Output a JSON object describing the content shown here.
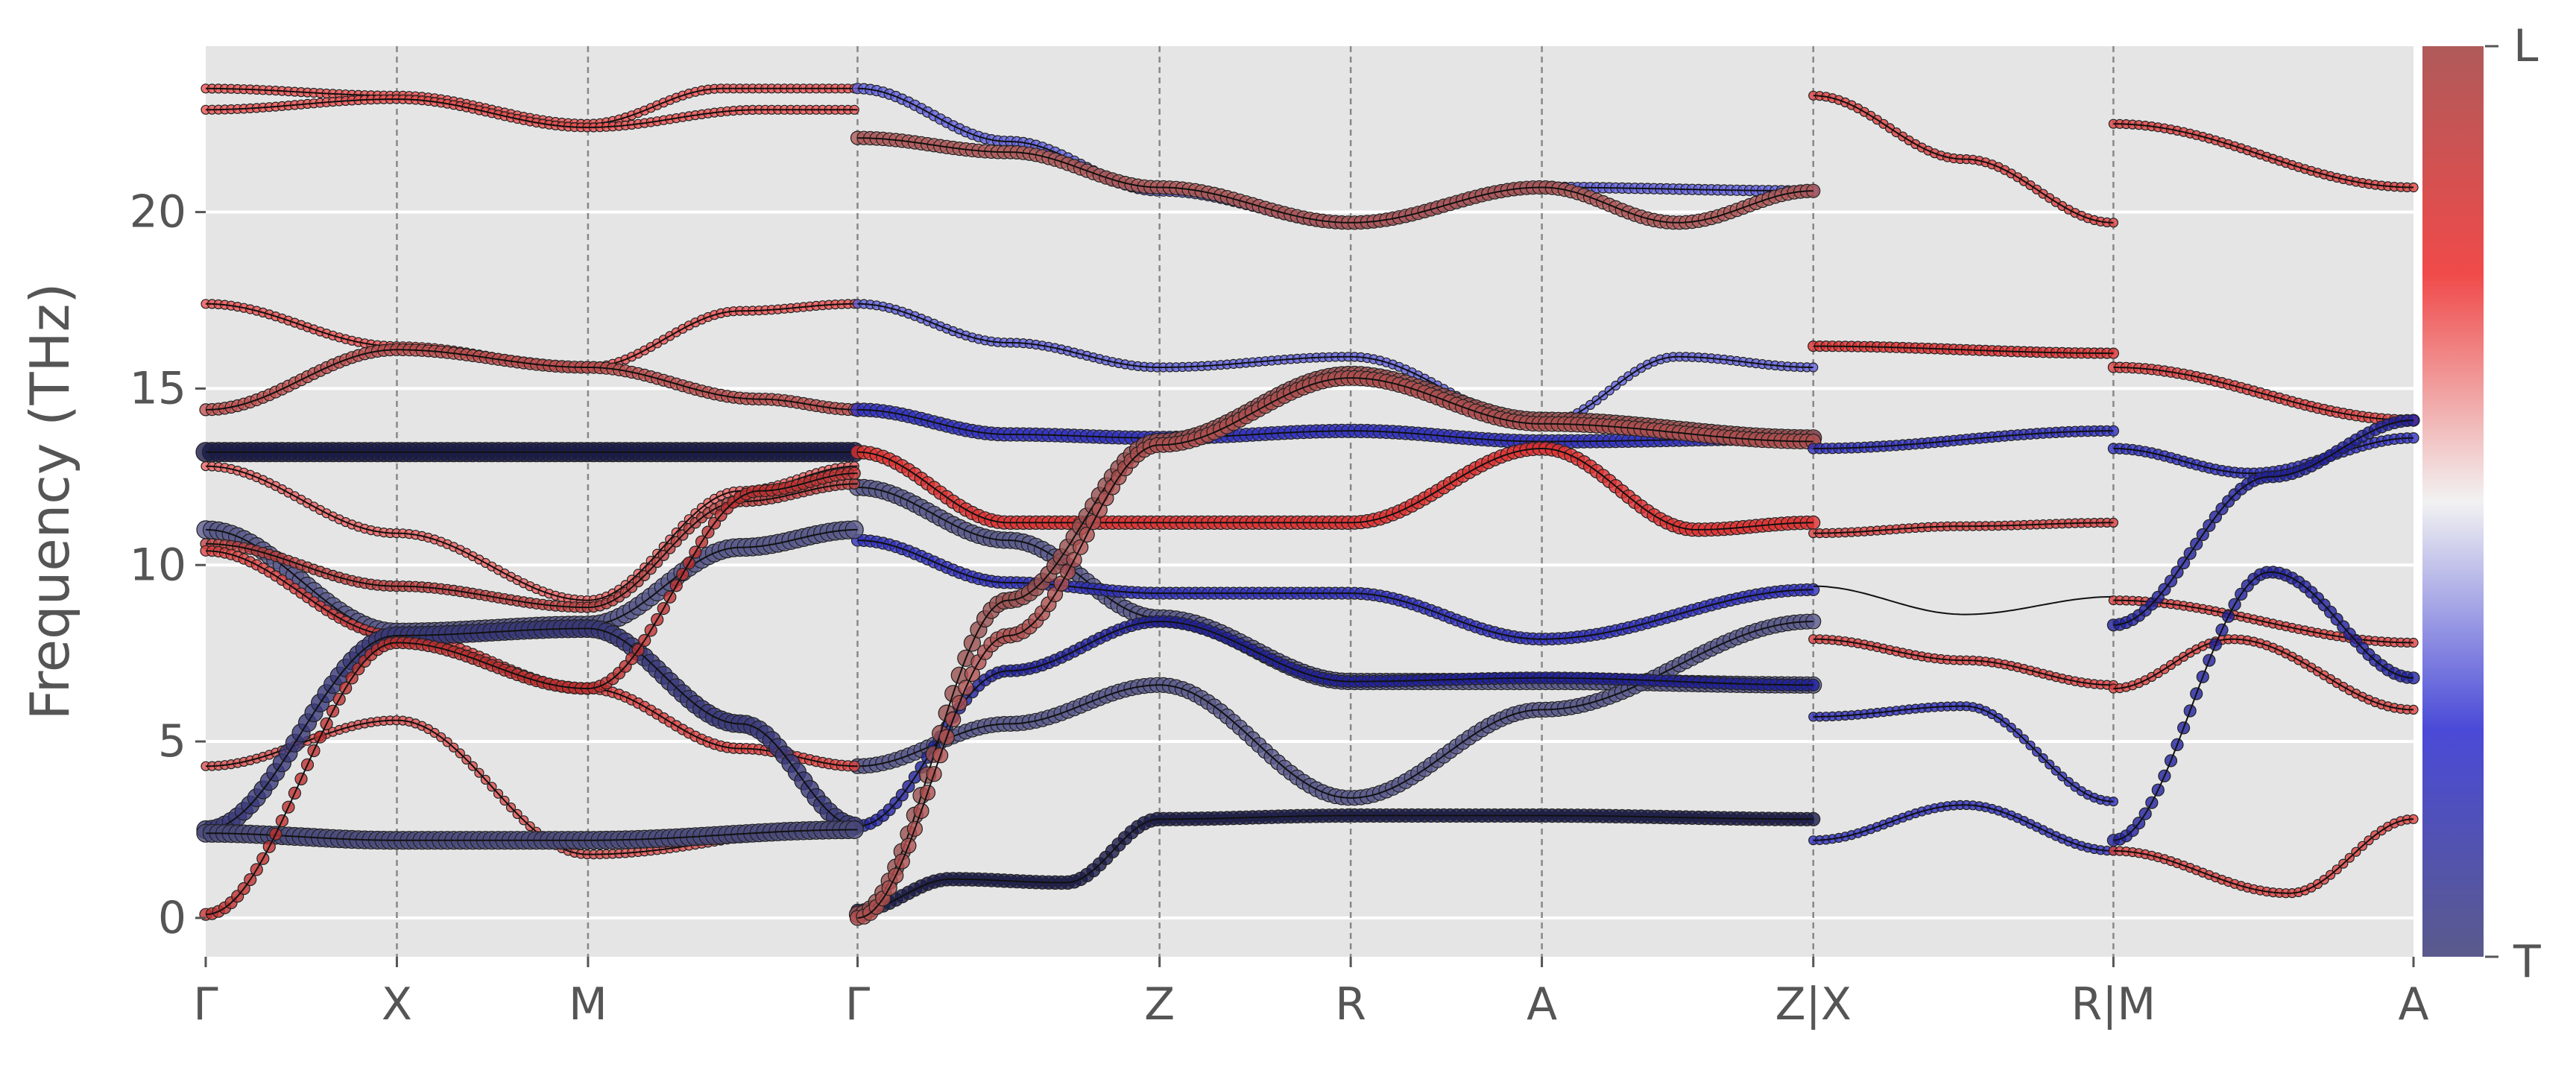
{
  "chart_data": {
    "type": "line",
    "ylabel": "Frequency (THz)",
    "ylim": [
      -1.1,
      24.7
    ],
    "yticks": [
      0,
      5,
      10,
      15,
      20
    ],
    "grid": true,
    "background": "#e5e5e5",
    "xticks": [
      {
        "label": "Γ",
        "x": 0
      },
      {
        "label": "X",
        "x": 1
      },
      {
        "label": "M",
        "x": 2
      },
      {
        "label": "Γ",
        "x": 3.41
      },
      {
        "label": "Z",
        "x": 4.99
      },
      {
        "label": "R",
        "x": 5.99
      },
      {
        "label": "A",
        "x": 6.99
      },
      {
        "label": "Z|X",
        "x": 8.41
      },
      {
        "label": "R|M",
        "x": 9.98
      },
      {
        "label": "A",
        "x": 11.55
      }
    ],
    "xlim": [
      0,
      11.55
    ],
    "segments": [
      [
        0,
        8.41
      ],
      [
        8.41,
        9.98
      ],
      [
        9.98,
        11.55
      ]
    ],
    "colorbar": {
      "top_label": "L",
      "bottom_label": "T",
      "colors": [
        "#5a5a8c",
        "#4a4ad8",
        "#f2f2f2",
        "#f04a4a",
        "#b05a5a"
      ]
    },
    "series": [
      {
        "values": [
          [
            0,
            23.5
          ],
          [
            1,
            23.3
          ],
          [
            2,
            22.5
          ],
          [
            2.7,
            23.5
          ],
          [
            3.41,
            23.5
          ]
        ],
        "color": "#ef5050",
        "size": 6
      },
      {
        "values": [
          [
            0,
            22.9
          ],
          [
            1,
            23.2
          ],
          [
            2,
            22.4
          ],
          [
            2.9,
            22.9
          ],
          [
            3.41,
            22.9
          ]
        ],
        "color": "#ef5050",
        "size": 6
      },
      {
        "values": [
          [
            3.41,
            23.5
          ],
          [
            4.2,
            22.0
          ],
          [
            4.99,
            20.6
          ],
          [
            5.99,
            19.7
          ],
          [
            6.99,
            20.7
          ],
          [
            8.41,
            20.6
          ]
        ],
        "color": "#6060e0",
        "size": 7
      },
      {
        "values": [
          [
            3.41,
            22.1
          ],
          [
            4.2,
            21.7
          ],
          [
            4.99,
            20.7
          ],
          [
            5.99,
            19.7
          ],
          [
            6.99,
            20.7
          ],
          [
            7.7,
            19.7
          ],
          [
            8.41,
            20.6
          ]
        ],
        "color": "#b05a5a",
        "size": 9
      },
      {
        "values": [
          [
            0,
            17.4
          ],
          [
            1,
            16.2
          ],
          [
            2,
            15.6
          ],
          [
            2.8,
            17.2
          ],
          [
            3.41,
            17.4
          ]
        ],
        "color": "#ef5050",
        "size": 6
      },
      {
        "values": [
          [
            0,
            14.4
          ],
          [
            1,
            16.1
          ],
          [
            2,
            15.6
          ],
          [
            2.9,
            14.7
          ],
          [
            3.41,
            14.4
          ]
        ],
        "color": "#c05050",
        "size": 8
      },
      {
        "values": [
          [
            0,
            13.2
          ],
          [
            1,
            13.2
          ],
          [
            2,
            13.2
          ],
          [
            3.41,
            13.2
          ]
        ],
        "color": "#1a1a4a",
        "size": 13
      },
      {
        "values": [
          [
            3.41,
            17.4
          ],
          [
            4.2,
            16.3
          ],
          [
            4.99,
            15.6
          ],
          [
            5.99,
            15.9
          ],
          [
            6.99,
            14.0
          ],
          [
            7.7,
            15.9
          ],
          [
            8.41,
            15.6
          ]
        ],
        "color": "#6060e0",
        "size": 6
      },
      {
        "values": [
          [
            3.41,
            14.4
          ],
          [
            4.2,
            13.7
          ],
          [
            4.99,
            13.6
          ],
          [
            5.99,
            13.8
          ],
          [
            6.99,
            13.5
          ],
          [
            8.41,
            13.6
          ]
        ],
        "color": "#3030c0",
        "size": 9
      },
      {
        "values": [
          [
            3.41,
            13.2
          ],
          [
            4.2,
            11.2
          ],
          [
            4.99,
            11.2
          ],
          [
            5.99,
            11.2
          ],
          [
            6.99,
            13.3
          ],
          [
            7.8,
            11.0
          ],
          [
            8.41,
            11.2
          ]
        ],
        "color": "#e03030",
        "size": 9
      },
      {
        "values": [
          [
            3.41,
            12.2
          ],
          [
            4.2,
            10.7
          ],
          [
            4.99,
            8.5
          ],
          [
            5.99,
            6.7
          ],
          [
            6.99,
            6.7
          ],
          [
            8.41,
            6.6
          ]
        ],
        "color": "#5a5a8c",
        "size": 11
      },
      {
        "values": [
          [
            3.41,
            10.7
          ],
          [
            4.2,
            9.5
          ],
          [
            4.99,
            9.2
          ],
          [
            5.99,
            9.2
          ],
          [
            6.99,
            7.9
          ],
          [
            8.41,
            9.3
          ]
        ],
        "color": "#3030c0",
        "size": 8
      },
      {
        "values": [
          [
            3.41,
            4.3
          ],
          [
            4.2,
            5.5
          ],
          [
            4.99,
            6.6
          ],
          [
            5.99,
            3.4
          ],
          [
            6.99,
            5.9
          ],
          [
            8.41,
            8.4
          ]
        ],
        "color": "#5a5a8c",
        "size": 10
      },
      {
        "values": [
          [
            3.41,
            2.6
          ],
          [
            4.2,
            7.0
          ],
          [
            4.99,
            8.4
          ],
          [
            5.99,
            6.7
          ],
          [
            6.99,
            6.8
          ],
          [
            8.41,
            6.6
          ]
        ],
        "color": "#2020a0",
        "size": 8
      },
      {
        "values": [
          [
            3.41,
            0.2
          ],
          [
            3.9,
            1.1
          ],
          [
            4.5,
            1.0
          ],
          [
            4.99,
            2.8
          ],
          [
            5.99,
            2.9
          ],
          [
            6.99,
            2.9
          ],
          [
            8.41,
            2.8
          ]
        ],
        "color": "#1a1a4a",
        "size": 9
      },
      {
        "values": [
          [
            3.41,
            0.1
          ],
          [
            4.2,
            9.0
          ],
          [
            4.99,
            13.5
          ],
          [
            5.99,
            15.4
          ],
          [
            6.99,
            14.1
          ],
          [
            8.41,
            13.6
          ]
        ],
        "color": "#9a5050",
        "size": 11
      },
      {
        "values": [
          [
            3.41,
            0.0
          ],
          [
            4.2,
            8.0
          ],
          [
            4.99,
            13.4
          ],
          [
            5.99,
            15.3
          ],
          [
            6.99,
            14.0
          ],
          [
            8.41,
            13.5
          ]
        ],
        "color": "#b05050",
        "size": 10
      },
      {
        "values": [
          [
            0,
            12.8
          ],
          [
            1,
            10.9
          ],
          [
            2,
            9.0
          ],
          [
            2.8,
            12.1
          ],
          [
            3.41,
            12.8
          ]
        ],
        "color": "#ef6060",
        "size": 6
      },
      {
        "values": [
          [
            0,
            11.0
          ],
          [
            1,
            8.1
          ],
          [
            2,
            8.3
          ],
          [
            2.8,
            10.5
          ],
          [
            3.41,
            11.0
          ]
        ],
        "color": "#5a5a8c",
        "size": 12
      },
      {
        "values": [
          [
            0,
            10.6
          ],
          [
            1,
            9.4
          ],
          [
            2,
            8.8
          ],
          [
            2.8,
            11.8
          ],
          [
            3.41,
            12.3
          ]
        ],
        "color": "#c04040",
        "size": 7
      },
      {
        "values": [
          [
            0,
            10.4
          ],
          [
            1,
            8.0
          ],
          [
            2,
            6.5
          ],
          [
            2.8,
            4.8
          ],
          [
            3.41,
            4.3
          ]
        ],
        "color": "#e04040",
        "size": 7
      },
      {
        "values": [
          [
            0,
            4.3
          ],
          [
            1,
            5.6
          ],
          [
            2,
            1.8
          ],
          [
            3.41,
            2.6
          ]
        ],
        "color": "#e05050",
        "size": 6
      },
      {
        "values": [
          [
            0,
            2.5
          ],
          [
            1,
            8.0
          ],
          [
            2,
            8.2
          ],
          [
            2.8,
            5.5
          ],
          [
            3.41,
            2.6
          ]
        ],
        "color": "#3a3a7a",
        "size": 12
      },
      {
        "values": [
          [
            0,
            2.4
          ],
          [
            1,
            2.2
          ],
          [
            2,
            2.2
          ],
          [
            3.41,
            2.5
          ]
        ],
        "color": "#4a4a7c",
        "size": 12
      },
      {
        "values": [
          [
            0,
            0.1
          ],
          [
            1,
            7.8
          ],
          [
            2,
            6.5
          ],
          [
            2.9,
            12.1
          ],
          [
            3.41,
            12.6
          ]
        ],
        "color": "#c03030",
        "size": 8
      },
      {
        "values": [
          [
            8.41,
            23.3
          ],
          [
            9.2,
            21.5
          ],
          [
            9.98,
            19.7
          ]
        ],
        "color": "#e04040",
        "size": 6
      },
      {
        "values": [
          [
            8.41,
            16.2
          ],
          [
            9.98,
            16.0
          ]
        ],
        "color": "#e03030",
        "size": 7
      },
      {
        "values": [
          [
            8.41,
            13.3
          ],
          [
            9.98,
            13.8
          ]
        ],
        "color": "#3030c0",
        "size": 7
      },
      {
        "values": [
          [
            8.41,
            10.9
          ],
          [
            9.2,
            11.1
          ],
          [
            9.98,
            11.2
          ]
        ],
        "color": "#e04040",
        "size": 6
      },
      {
        "values": [
          [
            8.41,
            9.4
          ],
          [
            9.2,
            8.6
          ],
          [
            9.98,
            9.1
          ]
        ],
        "color": "#1a1a1a",
        "size": 0
      },
      {
        "values": [
          [
            8.41,
            7.9
          ],
          [
            9.2,
            7.3
          ],
          [
            9.98,
            6.6
          ]
        ],
        "color": "#e04040",
        "size": 6
      },
      {
        "values": [
          [
            8.41,
            5.7
          ],
          [
            9.2,
            6.0
          ],
          [
            9.98,
            3.3
          ]
        ],
        "color": "#3030c0",
        "size": 6
      },
      {
        "values": [
          [
            8.41,
            2.2
          ],
          [
            9.2,
            3.2
          ],
          [
            9.98,
            1.9
          ]
        ],
        "color": "#3030c0",
        "size": 6
      },
      {
        "values": [
          [
            9.98,
            22.5
          ],
          [
            11.55,
            20.7
          ]
        ],
        "color": "#e04040",
        "size": 6
      },
      {
        "values": [
          [
            9.98,
            15.6
          ],
          [
            11.55,
            14.1
          ]
        ],
        "color": "#e04040",
        "size": 7
      },
      {
        "values": [
          [
            9.98,
            13.3
          ],
          [
            10.7,
            12.6
          ],
          [
            11.55,
            13.6
          ]
        ],
        "color": "#3030c0",
        "size": 7
      },
      {
        "values": [
          [
            9.98,
            9.0
          ],
          [
            11.55,
            7.8
          ]
        ],
        "color": "#e04040",
        "size": 6
      },
      {
        "values": [
          [
            9.98,
            6.5
          ],
          [
            10.6,
            7.9
          ],
          [
            11.55,
            5.9
          ]
        ],
        "color": "#e04040",
        "size": 6
      },
      {
        "values": [
          [
            9.98,
            8.3
          ],
          [
            10.8,
            12.5
          ],
          [
            11.55,
            14.1
          ]
        ],
        "color": "#2020a0",
        "size": 8
      },
      {
        "values": [
          [
            9.98,
            2.2
          ],
          [
            10.8,
            9.8
          ],
          [
            11.55,
            6.8
          ]
        ],
        "color": "#2020a0",
        "size": 8
      },
      {
        "values": [
          [
            9.98,
            1.9
          ],
          [
            10.9,
            0.7
          ],
          [
            11.55,
            2.8
          ]
        ],
        "color": "#e04040",
        "size": 6
      }
    ]
  }
}
